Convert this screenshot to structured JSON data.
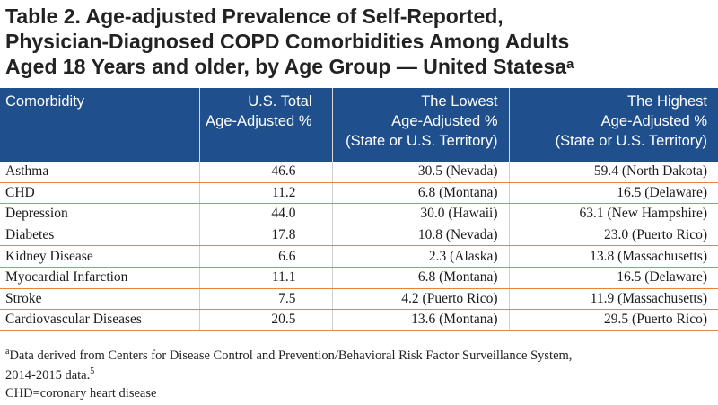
{
  "title": {
    "text": "Table 2. Age-adjusted Prevalence of Self-Reported, Physician-Diagnosed COPD Comorbidities Among Adults Aged 18 Years and older, by Age Group — United Statesa",
    "line1": "Table 2. Age-adjusted Prevalence of Self-Reported,",
    "line2": "Physician-Diagnosed COPD Comorbidities Among Adults",
    "line3": "Aged 18 Years and older, by Age Group — United Statesa",
    "superscript": "a"
  },
  "table": {
    "headers": [
      {
        "l1": "Comorbidity",
        "l2": "",
        "l3": ""
      },
      {
        "l1": "U.S. Total",
        "l2": "Age-Adjusted %",
        "l3": ""
      },
      {
        "l1": "The Lowest",
        "l2": "Age-Adjusted %",
        "l3": "(State or U.S. Territory)"
      },
      {
        "l1": "The Highest",
        "l2": "Age-Adjusted %",
        "l3": "(State or U.S. Territory)"
      }
    ],
    "rows": [
      {
        "comorbidity": "Asthma",
        "total": "46.6",
        "lowest": "30.5 (Nevada)",
        "highest": "59.4 (North Dakota)"
      },
      {
        "comorbidity": "CHD",
        "total": "11.2",
        "lowest": "6.8 (Montana)",
        "highest": "16.5 (Delaware)"
      },
      {
        "comorbidity": "Depression",
        "total": "44.0",
        "lowest": "30.0 (Hawaii)",
        "highest": "63.1 (New Hampshire)"
      },
      {
        "comorbidity": "Diabetes",
        "total": "17.8",
        "lowest": "10.8 (Nevada)",
        "highest": "23.0 (Puerto Rico)"
      },
      {
        "comorbidity": "Kidney Disease",
        "total": "6.6",
        "lowest": "2.3 (Alaska)",
        "highest": "13.8 (Massachusetts)"
      },
      {
        "comorbidity": "Myocardial Infarction",
        "total": "11.1",
        "lowest": "6.8 (Montana)",
        "highest": "16.5 (Delaware)"
      },
      {
        "comorbidity": "Stroke",
        "total": "7.5",
        "lowest": "4.2 (Puerto Rico)",
        "highest": "11.9 (Massachusetts)"
      },
      {
        "comorbidity": "Cardiovascular Diseases",
        "total": "20.5",
        "lowest": "13.6 (Montana)",
        "highest": "29.5 (Puerto Rico)"
      }
    ]
  },
  "footnote": {
    "marker": "a",
    "line1": "Data derived from Centers for Disease Control and Prevention/Behavioral Risk Factor Surveillance System,",
    "line2": "2014-2015 data.",
    "ref": "5"
  },
  "abbreviation": "CHD=coronary heart disease",
  "colors": {
    "header_bg": "#1f4f8d",
    "header_text": "#ffffff",
    "row_divider": "#e8833a"
  }
}
